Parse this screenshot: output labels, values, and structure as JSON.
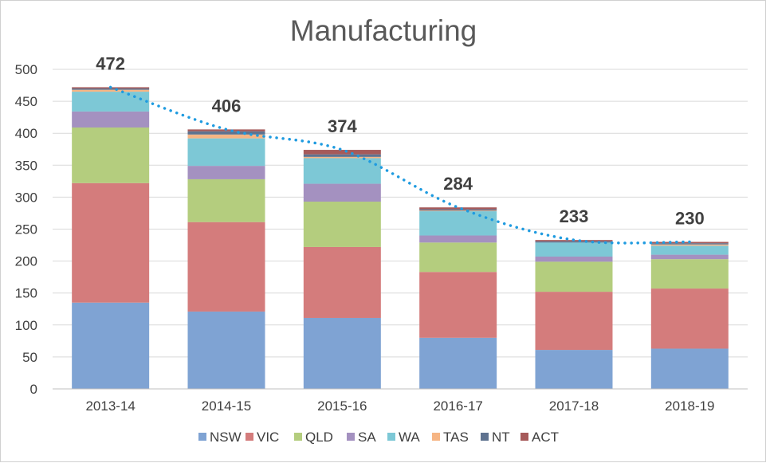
{
  "chart_data": {
    "type": "bar",
    "stacked": true,
    "title": "Manufacturing",
    "xlabel": "",
    "ylabel": "",
    "ylim": [
      0,
      500
    ],
    "yticks": [
      0,
      50,
      100,
      150,
      200,
      250,
      300,
      350,
      400,
      450,
      500
    ],
    "grid": true,
    "legend_position": "bottom",
    "categories": [
      "2013-14",
      "2014-15",
      "2015-16",
      "2016-17",
      "2017-18",
      "2018-19"
    ],
    "series": [
      {
        "name": "NSW",
        "color": "#7fa3d3",
        "values": [
          135,
          121,
          111,
          80,
          61,
          63
        ]
      },
      {
        "name": "VIC",
        "color": "#d47c7c",
        "values": [
          187,
          140,
          111,
          103,
          91,
          94
        ]
      },
      {
        "name": "QLD",
        "color": "#b4cd7e",
        "values": [
          87,
          67,
          71,
          46,
          47,
          46
        ]
      },
      {
        "name": "SA",
        "color": "#a491c0",
        "values": [
          25,
          21,
          28,
          11,
          8,
          7
        ]
      },
      {
        "name": "WA",
        "color": "#7dc8d6",
        "values": [
          31,
          43,
          40,
          38,
          22,
          14
        ]
      },
      {
        "name": "TAS",
        "color": "#f6b584",
        "values": [
          3,
          6,
          2,
          1,
          0,
          2
        ]
      },
      {
        "name": "NT",
        "color": "#5f7390",
        "values": [
          2,
          5,
          4,
          2,
          2,
          2
        ]
      },
      {
        "name": "ACT",
        "color": "#a65a5a",
        "values": [
          2,
          3,
          7,
          3,
          2,
          2
        ]
      }
    ],
    "totals": [
      472,
      406,
      374,
      284,
      233,
      230
    ],
    "trendline": {
      "style": "dotted",
      "color": "#1f9be0"
    }
  }
}
